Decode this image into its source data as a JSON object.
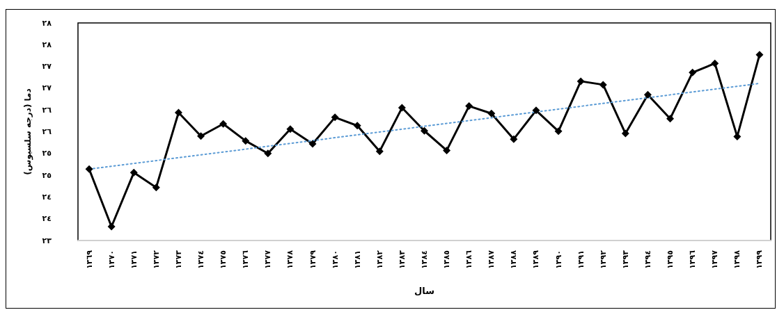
{
  "chart_data": {
    "type": "line",
    "xlabel": "سال",
    "ylabel": "دما (درجه سلسیوس)",
    "categories": [
      "١٣٦٩",
      "١٣٧٠",
      "١٣٧١",
      "١٣٧٢",
      "١٣٧٣",
      "١٣٧٤",
      "١٣٧٥",
      "١٣٧٦",
      "١٣٧٧",
      "١٣٧٨",
      "١٣٧٩",
      "١٣٨٠",
      "١٣٨١",
      "١٣٨٢",
      "١٣٨٣",
      "١٣٨٤",
      "١٣٨٥",
      "١٣٨٦",
      "١٣٨٧",
      "١٣٨٨",
      "١٣٨٩",
      "١٣٩٠",
      "١٣٩١",
      "١٣٩٢",
      "١٣٩٣",
      "١٣٩٤",
      "١٣٩٥",
      "١٣٩٦",
      "١٣٩٧",
      "١٣٩٨",
      "١٣٩٩"
    ],
    "series": [
      {
        "color": "#000000",
        "marker": "diamond",
        "line_style": "solid",
        "values": [
          24.64,
          23.32,
          24.56,
          24.22,
          25.94,
          25.4,
          25.68,
          25.29,
          25.0,
          25.56,
          25.22,
          25.83,
          25.64,
          25.05,
          26.05,
          25.52,
          25.07,
          26.09,
          25.92,
          25.33,
          25.99,
          25.51,
          26.66,
          26.58,
          25.46,
          26.35,
          25.8,
          26.86,
          27.07,
          25.39,
          27.27
        ]
      },
      {
        "type": "line",
        "color": "#5b9bd5",
        "marker": "none",
        "line_style": "dotted",
        "values": [
          24.64,
          null,
          null,
          null,
          null,
          null,
          null,
          null,
          null,
          null,
          null,
          null,
          null,
          null,
          null,
          null,
          null,
          null,
          null,
          null,
          null,
          null,
          null,
          null,
          null,
          null,
          null,
          null,
          null,
          null,
          26.61
        ]
      }
    ],
    "ylim": [
      23,
      28
    ],
    "yticks": [
      {
        "value": 23,
        "label": "٢٣"
      },
      {
        "value": 23.5,
        "label": "٢٤"
      },
      {
        "value": 24,
        "label": "٢٤"
      },
      {
        "value": 24.5,
        "label": "٢٥"
      },
      {
        "value": 25,
        "label": "٢٥"
      },
      {
        "value": 25.5,
        "label": "٢٦"
      },
      {
        "value": 26,
        "label": "٢٦"
      },
      {
        "value": 26.5,
        "label": "٢٧"
      },
      {
        "value": 27,
        "label": "٢٧"
      },
      {
        "value": 27.5,
        "label": "٢٨"
      },
      {
        "value": 28,
        "label": "٢٨"
      }
    ],
    "grid": false
  }
}
